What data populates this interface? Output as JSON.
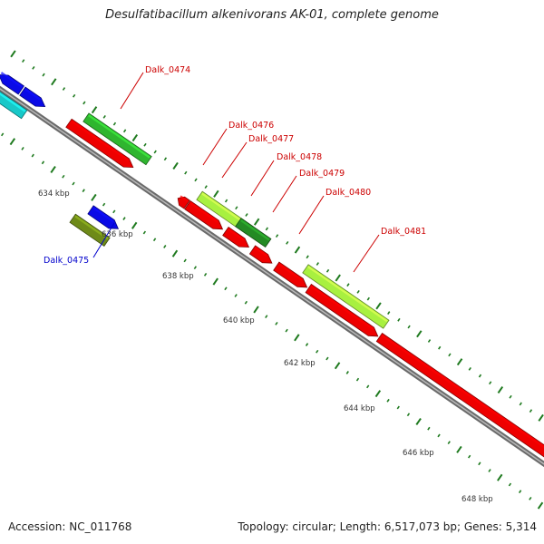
{
  "header": {
    "title": "Desulfatibacillum alkenivorans AK-01, complete genome"
  },
  "footer": {
    "accession": "Accession: NC_011768",
    "summary": "Topology: circular; Length: 6,517,073 bp; Genes: 5,314"
  },
  "colors": {
    "backbone": "#8a8a8a",
    "tick": "#1f7a1f",
    "label_red": "#cc0000",
    "label_blue": "#0000cc",
    "feature_red": "#ee0000",
    "feature_green": "#2fb52f",
    "feature_lightgreen": "#a8f040",
    "feature_darkgreen": "#248a24",
    "feature_blue": "#0a0ae6",
    "feature_cyan": "#18c8c8",
    "feature_olive": "#6e8a18"
  },
  "genes": [
    {
      "label": "Dalk_0474",
      "color": "label_red"
    },
    {
      "label": "Dalk_0475",
      "color": "label_blue"
    },
    {
      "label": "Dalk_0476",
      "color": "label_red"
    },
    {
      "label": "Dalk_0477",
      "color": "label_red"
    },
    {
      "label": "Dalk_0478",
      "color": "label_red"
    },
    {
      "label": "Dalk_0479",
      "color": "label_red"
    },
    {
      "label": "Dalk_0480",
      "color": "label_red"
    },
    {
      "label": "Dalk_0481",
      "color": "label_red"
    }
  ],
  "scale_labels": [
    "634 kbp",
    "636 kbp",
    "638 kbp",
    "640 kbp",
    "642 kbp",
    "644 kbp",
    "646 kbp",
    "648 kbp"
  ]
}
